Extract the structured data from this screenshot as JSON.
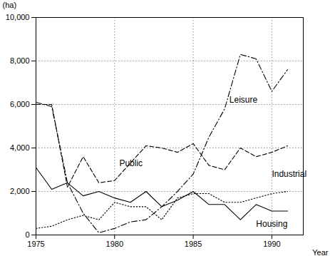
{
  "chart_data": {
    "type": "line",
    "x": [
      1975,
      1976,
      1977,
      1978,
      1979,
      1980,
      1981,
      1982,
      1983,
      1984,
      1985,
      1986,
      1987,
      1988,
      1989,
      1990,
      1991
    ],
    "series": [
      {
        "name": "Leisure",
        "color": "#000000",
        "line_style": "dashdot",
        "values": [
          6100,
          5900,
          2400,
          1000,
          100,
          300,
          600,
          700,
          1300,
          2000,
          2800,
          4500,
          5800,
          8300,
          8100,
          6600,
          7600
        ]
      },
      {
        "name": "Public",
        "color": "#000000",
        "line_style": "dashed",
        "values": [
          6000,
          6000,
          2200,
          3600,
          2400,
          2500,
          3300,
          4100,
          4000,
          3800,
          4200,
          3200,
          3000,
          4000,
          3600,
          3800,
          4100
        ]
      },
      {
        "name": "Industrial",
        "color": "#000000",
        "line_style": "dotted",
        "values": [
          300,
          400,
          700,
          900,
          700,
          1500,
          1300,
          1300,
          700,
          1700,
          1900,
          1900,
          1500,
          1500,
          1700,
          1900,
          2000
        ]
      },
      {
        "name": "Housing",
        "color": "#000000",
        "line_style": "solid",
        "values": [
          3100,
          2100,
          2400,
          1800,
          2000,
          1700,
          1500,
          2000,
          1300,
          1600,
          2000,
          1400,
          1400,
          700,
          1400,
          1100,
          1100
        ]
      }
    ],
    "x_label": "Year",
    "y_label": "(ha)",
    "xlim": [
      1975,
      1992
    ],
    "xticks": [
      1975,
      1980,
      1985,
      1990
    ],
    "ylim": [
      0,
      10000
    ],
    "yticks": [
      0,
      {
        "value": 2000,
        "label": "2,000"
      },
      {
        "value": 4000,
        "label": "4,000"
      },
      {
        "value": 6000,
        "label": "6,000"
      },
      {
        "value": 8000,
        "label": "8,000"
      },
      {
        "value": 10000,
        "label": "10,000"
      }
    ],
    "grid": true,
    "annotations": [
      {
        "text": "Leisure",
        "x": 1987.3,
        "y": 6200
      },
      {
        "text": "Public",
        "x": 1980.3,
        "y": 3300
      },
      {
        "text": "Industrial",
        "x": 1990.0,
        "y": 2800
      },
      {
        "text": "Housing",
        "x": 1989.0,
        "y": 500
      }
    ]
  }
}
